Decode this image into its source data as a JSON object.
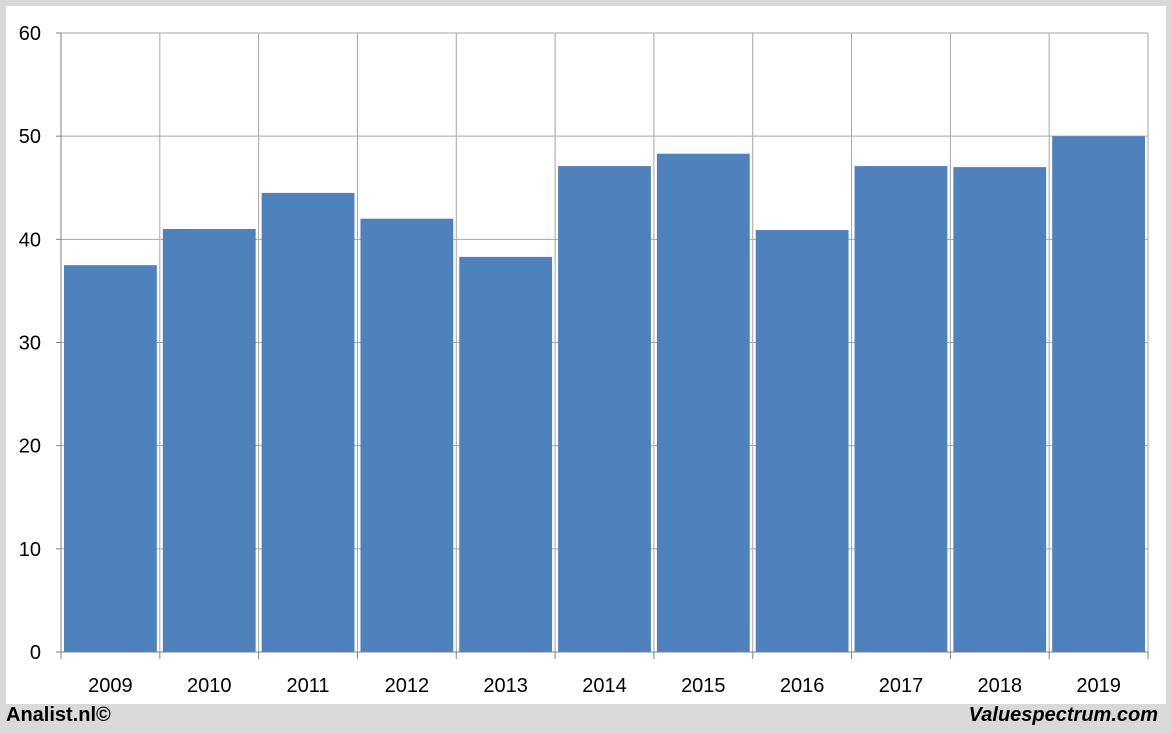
{
  "chart_data": {
    "type": "bar",
    "categories": [
      "2009",
      "2010",
      "2011",
      "2012",
      "2013",
      "2014",
      "2015",
      "2016",
      "2017",
      "2018",
      "2019"
    ],
    "values": [
      37.5,
      41.0,
      44.5,
      42.0,
      38.3,
      47.1,
      48.3,
      40.9,
      47.1,
      47.0,
      50.0
    ],
    "ylim": [
      0,
      60
    ],
    "yticks": [
      0,
      10,
      20,
      30,
      40,
      50,
      60
    ],
    "title": "",
    "xlabel": "",
    "ylabel": "",
    "grid": true,
    "bar_color": "#4f81bd",
    "grid_color": "#a6a6a6"
  },
  "footer": {
    "left": "Analist.nl©",
    "right": "Valuespectrum.com"
  }
}
